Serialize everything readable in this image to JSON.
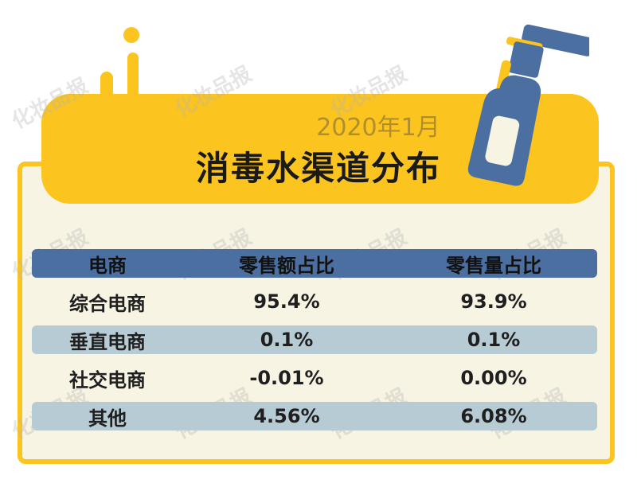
{
  "header": {
    "subtitle": "2020年1月",
    "title": "消毒水渠道分布",
    "watermark": "化妆品报"
  },
  "colors": {
    "banner_yellow": "#fbc41f",
    "card_cream": "#f7f4e3",
    "header_blue": "#4b6fa0",
    "stripe_blue_gray": "#b7cbd4",
    "bottle_blue": "#4b6fa0"
  },
  "icons": [
    "spray-bottle-icon"
  ],
  "table": {
    "columns": [
      "电商",
      "零售额占比",
      "零售量占比"
    ],
    "rows": [
      [
        "综合电商",
        "95.4%",
        "93.9%"
      ],
      [
        "垂直电商",
        "0.1%",
        "0.1%"
      ],
      [
        "社交电商",
        "-0.01%",
        "0.00%"
      ],
      [
        "其他",
        "4.56%",
        "6.08%"
      ]
    ]
  },
  "chart_data": {
    "type": "table",
    "title": "消毒水渠道分布",
    "subtitle": "2020年1月",
    "columns": [
      "电商",
      "零售额占比",
      "零售量占比"
    ],
    "categories": [
      "综合电商",
      "垂直电商",
      "社交电商",
      "其他"
    ],
    "series": [
      {
        "name": "零售额占比",
        "values": [
          95.4,
          0.1,
          -0.01,
          4.56
        ]
      },
      {
        "name": "零售量占比",
        "values": [
          93.9,
          0.1,
          0.0,
          6.08
        ]
      }
    ]
  }
}
